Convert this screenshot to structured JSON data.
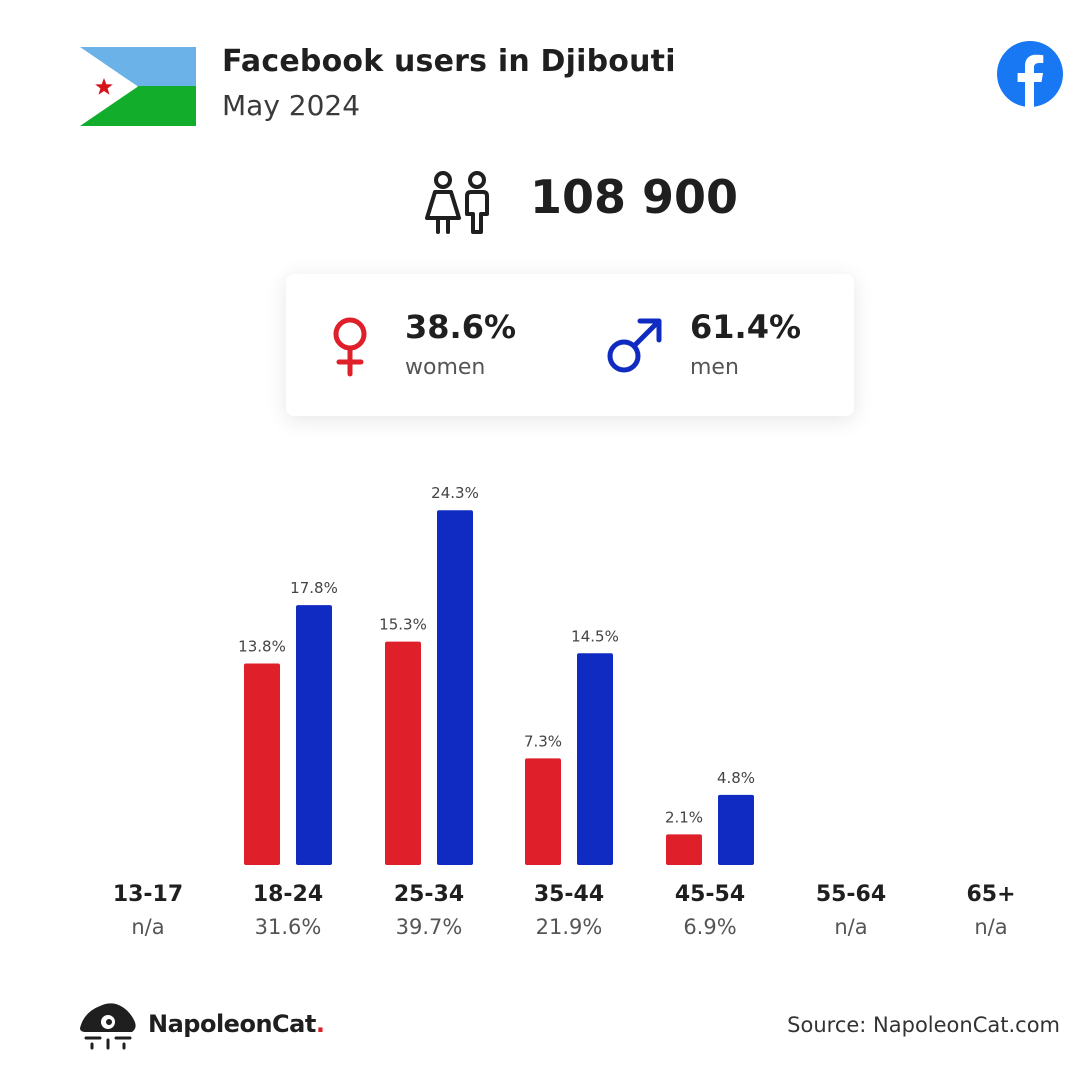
{
  "header": {
    "title": "Facebook users in Djibouti",
    "subtitle": "May 2024"
  },
  "summary": {
    "total_users": "108 900",
    "women": {
      "percent": "38.6%",
      "label": "women"
    },
    "men": {
      "percent": "61.4%",
      "label": "men"
    }
  },
  "colors": {
    "women": "#df1f29",
    "men": "#0f2bc2",
    "facebook": "#1877f2"
  },
  "chart_data": {
    "type": "bar",
    "categories": [
      "13-17",
      "18-24",
      "25-34",
      "35-44",
      "45-54",
      "55-64",
      "65+"
    ],
    "category_shares": [
      "n/a",
      "31.6%",
      "39.7%",
      "21.9%",
      "6.9%",
      "n/a",
      "n/a"
    ],
    "series": [
      {
        "values": [
          null,
          13.8,
          15.3,
          7.3,
          2.1,
          null,
          null
        ],
        "labels": [
          "",
          "13.8%",
          "15.3%",
          "7.3%",
          "2.1%",
          "",
          ""
        ]
      },
      {
        "values": [
          null,
          17.8,
          24.3,
          14.5,
          4.8,
          null,
          null
        ],
        "labels": [
          "",
          "17.8%",
          "24.3%",
          "14.5%",
          "4.8%",
          "",
          ""
        ]
      }
    ],
    "legend": "none"
  },
  "footer": {
    "brand": "NapoleonCat",
    "brand_dot": ".",
    "source": "Source: NapoleonCat.com"
  }
}
